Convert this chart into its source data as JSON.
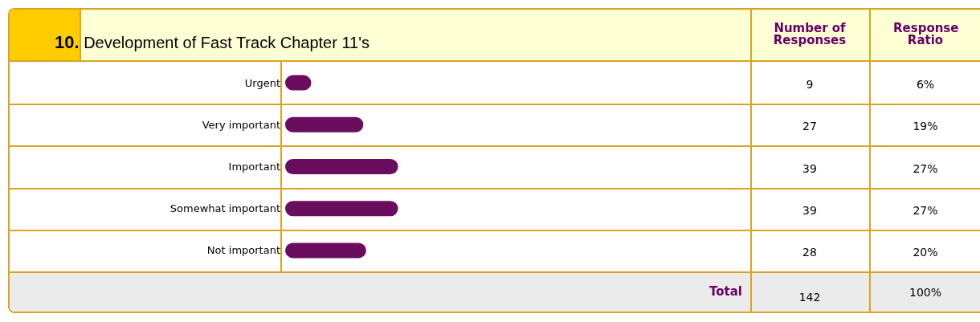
{
  "chart_data": {
    "type": "bar",
    "orientation": "horizontal",
    "title": "10. Development of Fast Track Chapter 11's",
    "categories": [
      "Urgent",
      "Very important",
      "Important",
      "Somewhat important",
      "Not important"
    ],
    "values": [
      9,
      27,
      39,
      39,
      28
    ],
    "color": "#6a0d5f",
    "value_labels": [
      "9",
      "27",
      "39",
      "39",
      "28"
    ],
    "grid": false,
    "annotations": [
      "Number of Responses",
      "Response Ratio",
      "Total",
      "142",
      "100%",
      "6%",
      "19%",
      "27%",
      "27%",
      "20%"
    ]
  }
}
